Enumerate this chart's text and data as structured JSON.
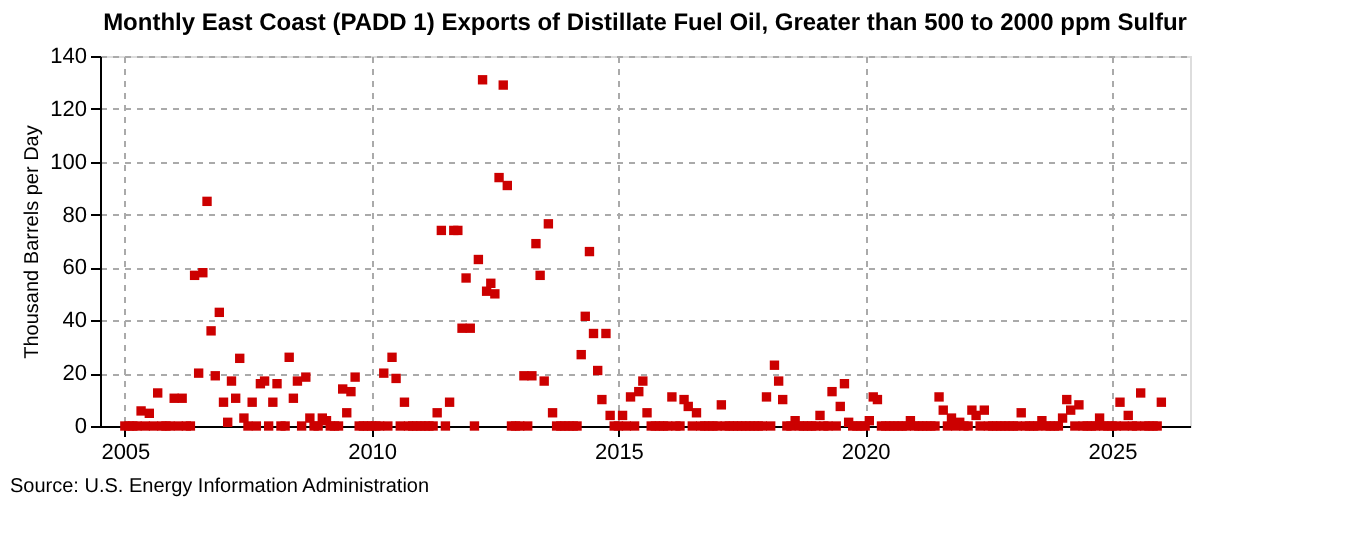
{
  "chart_data": {
    "type": "scatter",
    "title": "Monthly East Coast (PADD 1) Exports of Distillate Fuel Oil, Greater than 500 to 2000 ppm Sulfur",
    "ylabel": "Thousand Barrels per Day",
    "annotations": [
      "Source: U.S. Energy Information Administration"
    ],
    "x": [
      "2005-01",
      "2005-02",
      "2005-03",
      "2005-04",
      "2005-05",
      "2005-06",
      "2005-07",
      "2005-08",
      "2005-09",
      "2005-10",
      "2005-11",
      "2005-12",
      "2006-01",
      "2006-02",
      "2006-03",
      "2006-04",
      "2006-05",
      "2006-06",
      "2006-07",
      "2006-08",
      "2006-09",
      "2006-10",
      "2006-11",
      "2006-12",
      "2007-01",
      "2007-02",
      "2007-03",
      "2007-04",
      "2007-05",
      "2007-06",
      "2007-07",
      "2007-08",
      "2007-09",
      "2007-10",
      "2007-11",
      "2007-12",
      "2008-01",
      "2008-02",
      "2008-03",
      "2008-04",
      "2008-05",
      "2008-06",
      "2008-07",
      "2008-08",
      "2008-09",
      "2008-10",
      "2008-11",
      "2008-12",
      "2009-01",
      "2009-02",
      "2009-03",
      "2009-04",
      "2009-05",
      "2009-06",
      "2009-07",
      "2009-08",
      "2009-09",
      "2009-10",
      "2009-11",
      "2009-12",
      "2010-01",
      "2010-02",
      "2010-03",
      "2010-04",
      "2010-05",
      "2010-06",
      "2010-07",
      "2010-08",
      "2010-09",
      "2010-10",
      "2010-11",
      "2010-12",
      "2011-01",
      "2011-02",
      "2011-03",
      "2011-04",
      "2011-05",
      "2011-06",
      "2011-07",
      "2011-08",
      "2011-09",
      "2011-10",
      "2011-11",
      "2011-12",
      "2012-01",
      "2012-02",
      "2012-03",
      "2012-04",
      "2012-05",
      "2012-06",
      "2012-07",
      "2012-08",
      "2012-09",
      "2012-10",
      "2012-11",
      "2012-12",
      "2013-01",
      "2013-02",
      "2013-03",
      "2013-04",
      "2013-05",
      "2013-06",
      "2013-07",
      "2013-08",
      "2013-09",
      "2013-10",
      "2013-11",
      "2013-12",
      "2014-01",
      "2014-02",
      "2014-03",
      "2014-04",
      "2014-05",
      "2014-06",
      "2014-07",
      "2014-08",
      "2014-09",
      "2014-10",
      "2014-11",
      "2014-12",
      "2015-01",
      "2015-02",
      "2015-03",
      "2015-04",
      "2015-05",
      "2015-06",
      "2015-07",
      "2015-08",
      "2015-09",
      "2015-10",
      "2015-11",
      "2015-12",
      "2016-01",
      "2016-02",
      "2016-03",
      "2016-04",
      "2016-05",
      "2016-06",
      "2016-07",
      "2016-08",
      "2016-09",
      "2016-10",
      "2016-11",
      "2016-12",
      "2017-01",
      "2017-02",
      "2017-03",
      "2017-04",
      "2017-05",
      "2017-06",
      "2017-07",
      "2017-08",
      "2017-09",
      "2017-10",
      "2017-11",
      "2017-12",
      "2018-01",
      "2018-02",
      "2018-03",
      "2018-04",
      "2018-05",
      "2018-06",
      "2018-07",
      "2018-08",
      "2018-09",
      "2018-10",
      "2018-11",
      "2018-12",
      "2019-01",
      "2019-02",
      "2019-03",
      "2019-04",
      "2019-05",
      "2019-06",
      "2019-07",
      "2019-08",
      "2019-09",
      "2019-10",
      "2019-11",
      "2019-12",
      "2020-01",
      "2020-02",
      "2020-03",
      "2020-04",
      "2020-05",
      "2020-06",
      "2020-07",
      "2020-08",
      "2020-09",
      "2020-10",
      "2020-11",
      "2020-12",
      "2021-01",
      "2021-02",
      "2021-03",
      "2021-04",
      "2021-05",
      "2021-06",
      "2021-07",
      "2021-08",
      "2021-09",
      "2021-10",
      "2021-11",
      "2021-12",
      "2022-01",
      "2022-02",
      "2022-03",
      "2022-04",
      "2022-05",
      "2022-06",
      "2022-07",
      "2022-08",
      "2022-09",
      "2022-10",
      "2022-11",
      "2022-12",
      "2023-01",
      "2023-02",
      "2023-03",
      "2023-04",
      "2023-05",
      "2023-06",
      "2023-07",
      "2023-08",
      "2023-09",
      "2023-10",
      "2023-11",
      "2023-12",
      "2024-01",
      "2024-02",
      "2024-03",
      "2024-04",
      "2024-05",
      "2024-06",
      "2024-07",
      "2024-08",
      "2024-09",
      "2024-10",
      "2024-11",
      "2024-12",
      "2025-01",
      "2025-02",
      "2025-03",
      "2025-04",
      "2025-05",
      "2025-06",
      "2025-07",
      "2025-08",
      "2025-09",
      "2025-10",
      "2025-11",
      "2025-12",
      "2026-01"
    ],
    "series": [
      {
        "color": "#cc0000",
        "values": [
          0,
          0,
          0,
          0,
          5.7,
          0,
          4.8,
          0,
          12.5,
          0,
          0,
          0,
          10.5,
          0,
          10.5,
          0,
          0,
          57,
          20,
          58,
          85,
          36,
          19,
          43,
          9,
          1.4,
          17,
          10.5,
          25.6,
          3,
          0,
          9,
          0,
          16,
          17,
          0,
          9,
          16,
          0,
          0,
          26,
          10.5,
          17,
          0,
          18.5,
          3,
          0,
          0,
          3,
          2,
          0,
          0,
          0,
          14,
          5,
          13,
          18.5,
          0,
          0,
          0,
          0,
          0,
          0,
          20,
          0,
          26,
          18,
          0,
          9,
          0,
          0,
          0,
          0,
          0,
          0,
          0,
          5,
          74,
          0,
          9,
          74,
          74,
          37,
          56,
          37,
          0,
          63,
          131,
          51,
          54,
          50,
          94,
          129,
          91,
          0,
          0,
          0,
          19,
          0,
          19,
          69,
          57,
          17,
          76.5,
          5,
          0,
          0,
          0,
          0,
          0,
          0,
          27,
          41.5,
          66,
          35,
          21,
          10,
          35,
          4,
          0,
          0,
          4,
          0,
          11,
          0,
          13,
          17,
          5,
          0,
          0,
          0,
          0,
          0,
          11,
          0,
          0,
          10,
          7.4,
          0,
          5,
          0,
          0,
          0,
          0,
          0,
          8,
          0,
          0,
          0,
          0,
          0,
          0,
          0,
          0,
          0,
          0,
          11,
          0,
          23,
          17,
          10,
          0,
          0,
          2,
          0,
          0,
          0,
          0,
          0,
          4,
          0,
          0,
          13,
          0,
          7.4,
          16,
          1.4,
          0,
          0,
          0,
          0,
          2,
          11,
          10,
          0,
          0,
          0,
          0,
          0,
          0,
          0,
          2,
          0,
          0,
          0,
          0,
          0,
          0,
          11,
          6,
          0,
          3,
          0,
          1.4,
          0,
          0,
          6,
          4,
          0,
          6,
          0,
          0,
          0,
          0,
          0,
          0,
          0,
          0,
          5,
          0,
          0,
          0,
          0,
          2,
          0,
          0,
          0,
          0,
          3,
          10,
          6,
          0,
          8,
          0,
          0,
          0,
          0,
          3,
          0,
          0,
          0,
          0,
          9,
          0,
          4,
          0,
          0,
          12.5,
          0,
          0,
          0,
          0,
          9
        ]
      }
    ],
    "xlim": [
      "2004-07",
      "2026-08"
    ],
    "xticks": [
      "2005",
      "2010",
      "2015",
      "2020",
      "2025"
    ],
    "ylim": [
      0,
      140
    ],
    "yticks": [
      0,
      20,
      40,
      60,
      80,
      100,
      120,
      140
    ],
    "grid": true,
    "marker": "square"
  }
}
